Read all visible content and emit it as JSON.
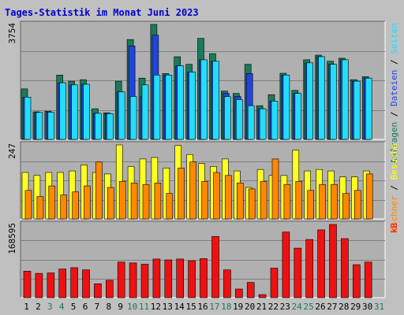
{
  "title": "Tages-Statistik im Monat Juni 2023",
  "colors": {
    "background": "#c0c0c0",
    "panel": "#b0b0b0",
    "grid": "#808080",
    "anfragen": "#1a7a5a",
    "dateien": "#2244dd",
    "seiten": "#22ddff",
    "besuche": "#ffff22",
    "rechner": "#ff8800",
    "kb": "#ee1111",
    "weekday_label": "#000000",
    "weekend_label": "#227755"
  },
  "chart_data": [
    {
      "type": "bar",
      "name": "requests-files-pages",
      "categories": [
        "1",
        "2",
        "3",
        "4",
        "5",
        "6",
        "7",
        "8",
        "9",
        "10",
        "11",
        "12",
        "13",
        "14",
        "15",
        "16",
        "17",
        "18",
        "19",
        "20",
        "21",
        "22",
        "23",
        "24",
        "25",
        "26",
        "27",
        "28",
        "29",
        "30",
        "31"
      ],
      "ymax_label": "3754",
      "ylim": [
        0,
        3754
      ],
      "legend": [
        "Anfragen",
        "Dateien",
        "Seiten"
      ],
      "legend_separator": " / ",
      "series": [
        {
          "name": "Anfragen",
          "color_key": "anfragen",
          "values": [
            1650,
            900,
            920,
            2100,
            1900,
            1950,
            1000,
            870,
            1900,
            3260,
            2000,
            3754,
            2150,
            2700,
            2450,
            3300,
            2800,
            1580,
            1500,
            2450,
            1100,
            1460,
            2160,
            1600,
            2600,
            2750,
            2550,
            2650,
            1950,
            2050,
            0
          ]
        },
        {
          "name": "Dateien",
          "color_key": "dateien",
          "values": [
            1380,
            880,
            890,
            1850,
            1780,
            1800,
            850,
            840,
            1550,
            3050,
            1400,
            3400,
            2100,
            2400,
            2200,
            2600,
            2550,
            1500,
            1400,
            2150,
            1000,
            1250,
            2100,
            1500,
            2500,
            2700,
            2450,
            2600,
            1900,
            2000,
            0
          ]
        },
        {
          "name": "Seiten",
          "color_key": "seiten",
          "values": [
            1380,
            880,
            890,
            1850,
            1780,
            1800,
            850,
            840,
            1550,
            1400,
            1780,
            2100,
            2100,
            2400,
            2200,
            2600,
            2550,
            1400,
            1300,
            1100,
            1000,
            1250,
            2100,
            1500,
            2500,
            2700,
            2450,
            2600,
            1900,
            2000,
            0
          ]
        }
      ]
    },
    {
      "type": "bar",
      "name": "visits-hosts",
      "categories": [
        "1",
        "2",
        "3",
        "4",
        "5",
        "6",
        "7",
        "8",
        "9",
        "10",
        "11",
        "12",
        "13",
        "14",
        "15",
        "16",
        "17",
        "18",
        "19",
        "20",
        "21",
        "22",
        "23",
        "24",
        "25",
        "26",
        "27",
        "28",
        "29",
        "30",
        "31"
      ],
      "ymax_label": "247",
      "ylim": [
        0,
        247
      ],
      "legend": [
        "Rechner",
        "Besuche"
      ],
      "legend_separator": " / ",
      "series": [
        {
          "name": "Besuche",
          "color_key": "besuche",
          "values": [
            155,
            145,
            155,
            155,
            160,
            180,
            155,
            150,
            247,
            175,
            200,
            205,
            170,
            245,
            215,
            185,
            175,
            200,
            160,
            105,
            165,
            145,
            145,
            230,
            160,
            165,
            160,
            140,
            140,
            160,
            0
          ]
        },
        {
          "name": "Rechner",
          "color_key": "rechner",
          "values": [
            95,
            75,
            110,
            80,
            90,
            110,
            190,
            105,
            125,
            120,
            115,
            120,
            85,
            170,
            190,
            125,
            155,
            145,
            120,
            100,
            125,
            200,
            115,
            125,
            95,
            115,
            115,
            85,
            95,
            150,
            0
          ]
        }
      ]
    },
    {
      "type": "bar",
      "name": "kb",
      "categories": [
        "1",
        "2",
        "3",
        "4",
        "5",
        "6",
        "7",
        "8",
        "9",
        "10",
        "11",
        "12",
        "13",
        "14",
        "15",
        "16",
        "17",
        "18",
        "19",
        "20",
        "21",
        "22",
        "23",
        "24",
        "25",
        "26",
        "27",
        "28",
        "29",
        "30",
        "31"
      ],
      "ymax_label": "168595",
      "ylim": [
        0,
        168595
      ],
      "legend": [
        "kB"
      ],
      "series": [
        {
          "name": "kB",
          "color_key": "kb",
          "values": [
            61000,
            56000,
            57000,
            66000,
            69000,
            64000,
            32000,
            40000,
            82000,
            80000,
            77000,
            89000,
            87000,
            89000,
            85000,
            90000,
            141000,
            64000,
            20000,
            35000,
            7000,
            68000,
            151000,
            114000,
            134000,
            156000,
            168595,
            136000,
            76000,
            82000,
            0
          ]
        }
      ]
    }
  ],
  "weekend_days": [
    "3",
    "4",
    "10",
    "11",
    "17",
    "18",
    "24",
    "25",
    "31"
  ]
}
